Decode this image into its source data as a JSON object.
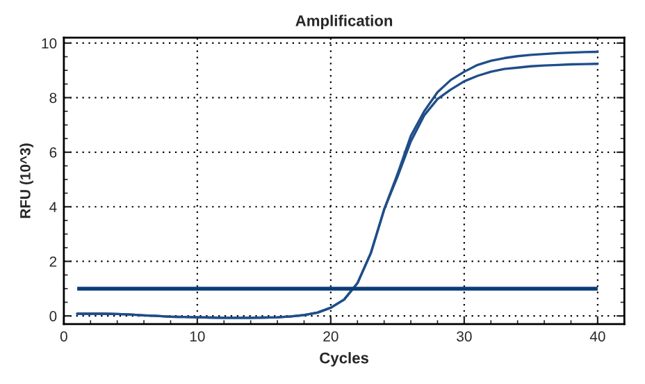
{
  "chart_data": {
    "type": "line",
    "title": "Amplification",
    "xlabel": "Cycles",
    "ylabel": "RFU (10^3)",
    "x": [
      1,
      2,
      3,
      4,
      5,
      6,
      7,
      8,
      9,
      10,
      11,
      12,
      13,
      14,
      15,
      16,
      17,
      18,
      19,
      20,
      21,
      22,
      23,
      24,
      25,
      26,
      27,
      28,
      29,
      30,
      31,
      32,
      33,
      34,
      35,
      36,
      37,
      38,
      39,
      40
    ],
    "series": [
      {
        "color": "#1f4e89",
        "values": [
          0.08,
          0.08,
          0.08,
          0.07,
          0.05,
          0.02,
          0.0,
          -0.03,
          -0.04,
          -0.05,
          -0.06,
          -0.07,
          -0.07,
          -0.07,
          -0.06,
          -0.05,
          -0.02,
          0.03,
          0.12,
          0.3,
          0.6,
          1.2,
          2.3,
          3.9,
          5.2,
          6.6,
          7.5,
          8.2,
          8.65,
          8.95,
          9.2,
          9.35,
          9.45,
          9.52,
          9.57,
          9.6,
          9.63,
          9.65,
          9.67,
          9.68
        ]
      },
      {
        "color": "#1f4e89",
        "values": [
          0.08,
          0.08,
          0.08,
          0.07,
          0.05,
          0.02,
          0.0,
          -0.03,
          -0.04,
          -0.05,
          -0.06,
          -0.07,
          -0.07,
          -0.07,
          -0.06,
          -0.05,
          -0.02,
          0.03,
          0.12,
          0.3,
          0.6,
          1.2,
          2.3,
          3.9,
          5.1,
          6.4,
          7.35,
          7.95,
          8.3,
          8.6,
          8.8,
          8.95,
          9.05,
          9.1,
          9.15,
          9.18,
          9.2,
          9.22,
          9.23,
          9.24
        ]
      }
    ],
    "ref_lines": [
      {
        "axis": "y",
        "value": 1,
        "color": "#0a3c78"
      }
    ],
    "xlim": [
      0,
      42
    ],
    "ylim": [
      -0.3,
      10.2
    ],
    "xticks": [
      0,
      10,
      20,
      30,
      40
    ],
    "yticks": [
      0,
      2,
      4,
      6,
      8,
      10
    ],
    "grid": true,
    "marker": "none",
    "line_style": "solid",
    "legend": false
  }
}
